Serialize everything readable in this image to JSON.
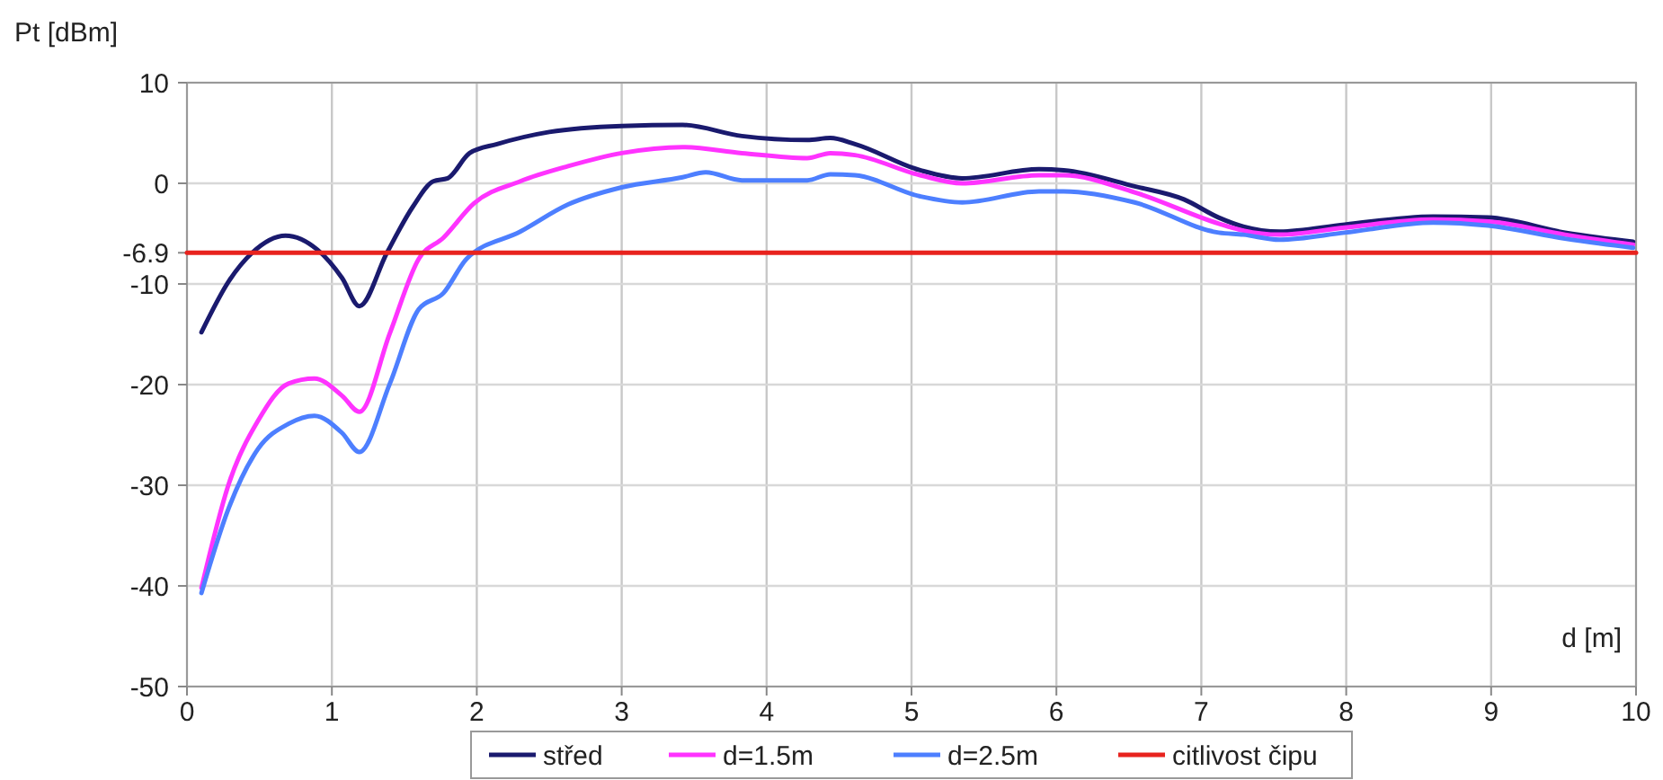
{
  "chart_data": {
    "type": "line",
    "ylabel": "Pt [dBm]",
    "xlabel": "d [m]",
    "xlim": [
      0,
      10
    ],
    "xticks": [
      0,
      1,
      2,
      3,
      4,
      5,
      6,
      7,
      8,
      9,
      10
    ],
    "ylim": [
      -50,
      10
    ],
    "yticks": [
      10,
      0,
      -6.9,
      -10,
      -20,
      -30,
      -40,
      -50
    ],
    "grid": true,
    "legend": "bottom",
    "marker": "none",
    "line_style": "solid",
    "series": [
      {
        "name": "střed",
        "color": "#1a1a6e",
        "x": [
          0.1,
          0.29,
          0.45,
          0.68,
          0.9,
          1.07,
          1.19,
          1.38,
          1.56,
          1.7,
          1.8,
          1.95,
          2.14,
          2.5,
          3,
          3.42,
          3.83,
          4.28,
          4.44,
          4.61,
          5.06,
          5.35,
          5.88,
          6.05,
          6.54,
          6.88,
          7.12,
          7.29,
          7.54,
          7.99,
          8.6,
          8.98,
          9.51,
          9.98
        ],
        "values": [
          -14.8,
          -9.7,
          -6.9,
          -5.2,
          -6.6,
          -9.4,
          -12.2,
          -6.9,
          -2.3,
          0.2,
          0.5,
          3,
          3.9,
          5.1,
          5.7,
          5.8,
          4.7,
          4.3,
          4.5,
          3.9,
          1.3,
          0.5,
          1.4,
          1.3,
          -0.3,
          -1.6,
          -3.4,
          -4.3,
          -4.8,
          -4.1,
          -3.3,
          -3.4,
          -4.9,
          -5.8
        ]
      },
      {
        "name": "d=1.5m",
        "color": "#ff33ff",
        "x": [
          0.1,
          0.29,
          0.49,
          0.7,
          0.88,
          1.07,
          1.19,
          1.4,
          1.6,
          1.77,
          1.98,
          2.3,
          2.63,
          3,
          3.42,
          3.83,
          4.28,
          4.44,
          4.61,
          5.06,
          5.35,
          5.88,
          6.05,
          6.54,
          7.12,
          7.29,
          7.54,
          7.99,
          8.6,
          8.98,
          9.51,
          9.98
        ],
        "values": [
          -40.2,
          -29.8,
          -23.6,
          -19.9,
          -19.4,
          -21.1,
          -22.7,
          -14.9,
          -7.5,
          -5.4,
          -2,
          0.2,
          1.7,
          3,
          3.6,
          3,
          2.5,
          3,
          2.8,
          0.8,
          0,
          0.8,
          0.8,
          -0.9,
          -4,
          -4.7,
          -5.1,
          -4.4,
          -3.6,
          -3.8,
          -5.1,
          -6.1
        ]
      },
      {
        "name": "d=2.5m",
        "color": "#4d7fff",
        "x": [
          0.1,
          0.29,
          0.49,
          0.7,
          0.88,
          1.07,
          1.19,
          1.4,
          1.6,
          1.77,
          1.93,
          2.3,
          2.63,
          3,
          3.42,
          3.58,
          3.83,
          4.28,
          4.44,
          4.61,
          5.06,
          5.35,
          5.88,
          6.05,
          6.54,
          7.12,
          7.29,
          7.54,
          7.99,
          8.6,
          8.98,
          9.51,
          9.98
        ],
        "values": [
          -40.7,
          -32.2,
          -26.4,
          -23.9,
          -23.1,
          -24.8,
          -26.7,
          -19.9,
          -12.5,
          -10.9,
          -7.5,
          -4.8,
          -2.1,
          -0.4,
          0.6,
          1.1,
          0.3,
          0.3,
          0.9,
          0.8,
          -1.3,
          -1.9,
          -0.8,
          -0.8,
          -1.9,
          -4.9,
          -5.1,
          -5.6,
          -4.9,
          -3.9,
          -4.2,
          -5.5,
          -6.4
        ]
      },
      {
        "name": "citlivost čipu",
        "color": "#e8231e",
        "x": [
          0,
          10
        ],
        "values": [
          -6.9,
          -6.9
        ]
      }
    ]
  }
}
